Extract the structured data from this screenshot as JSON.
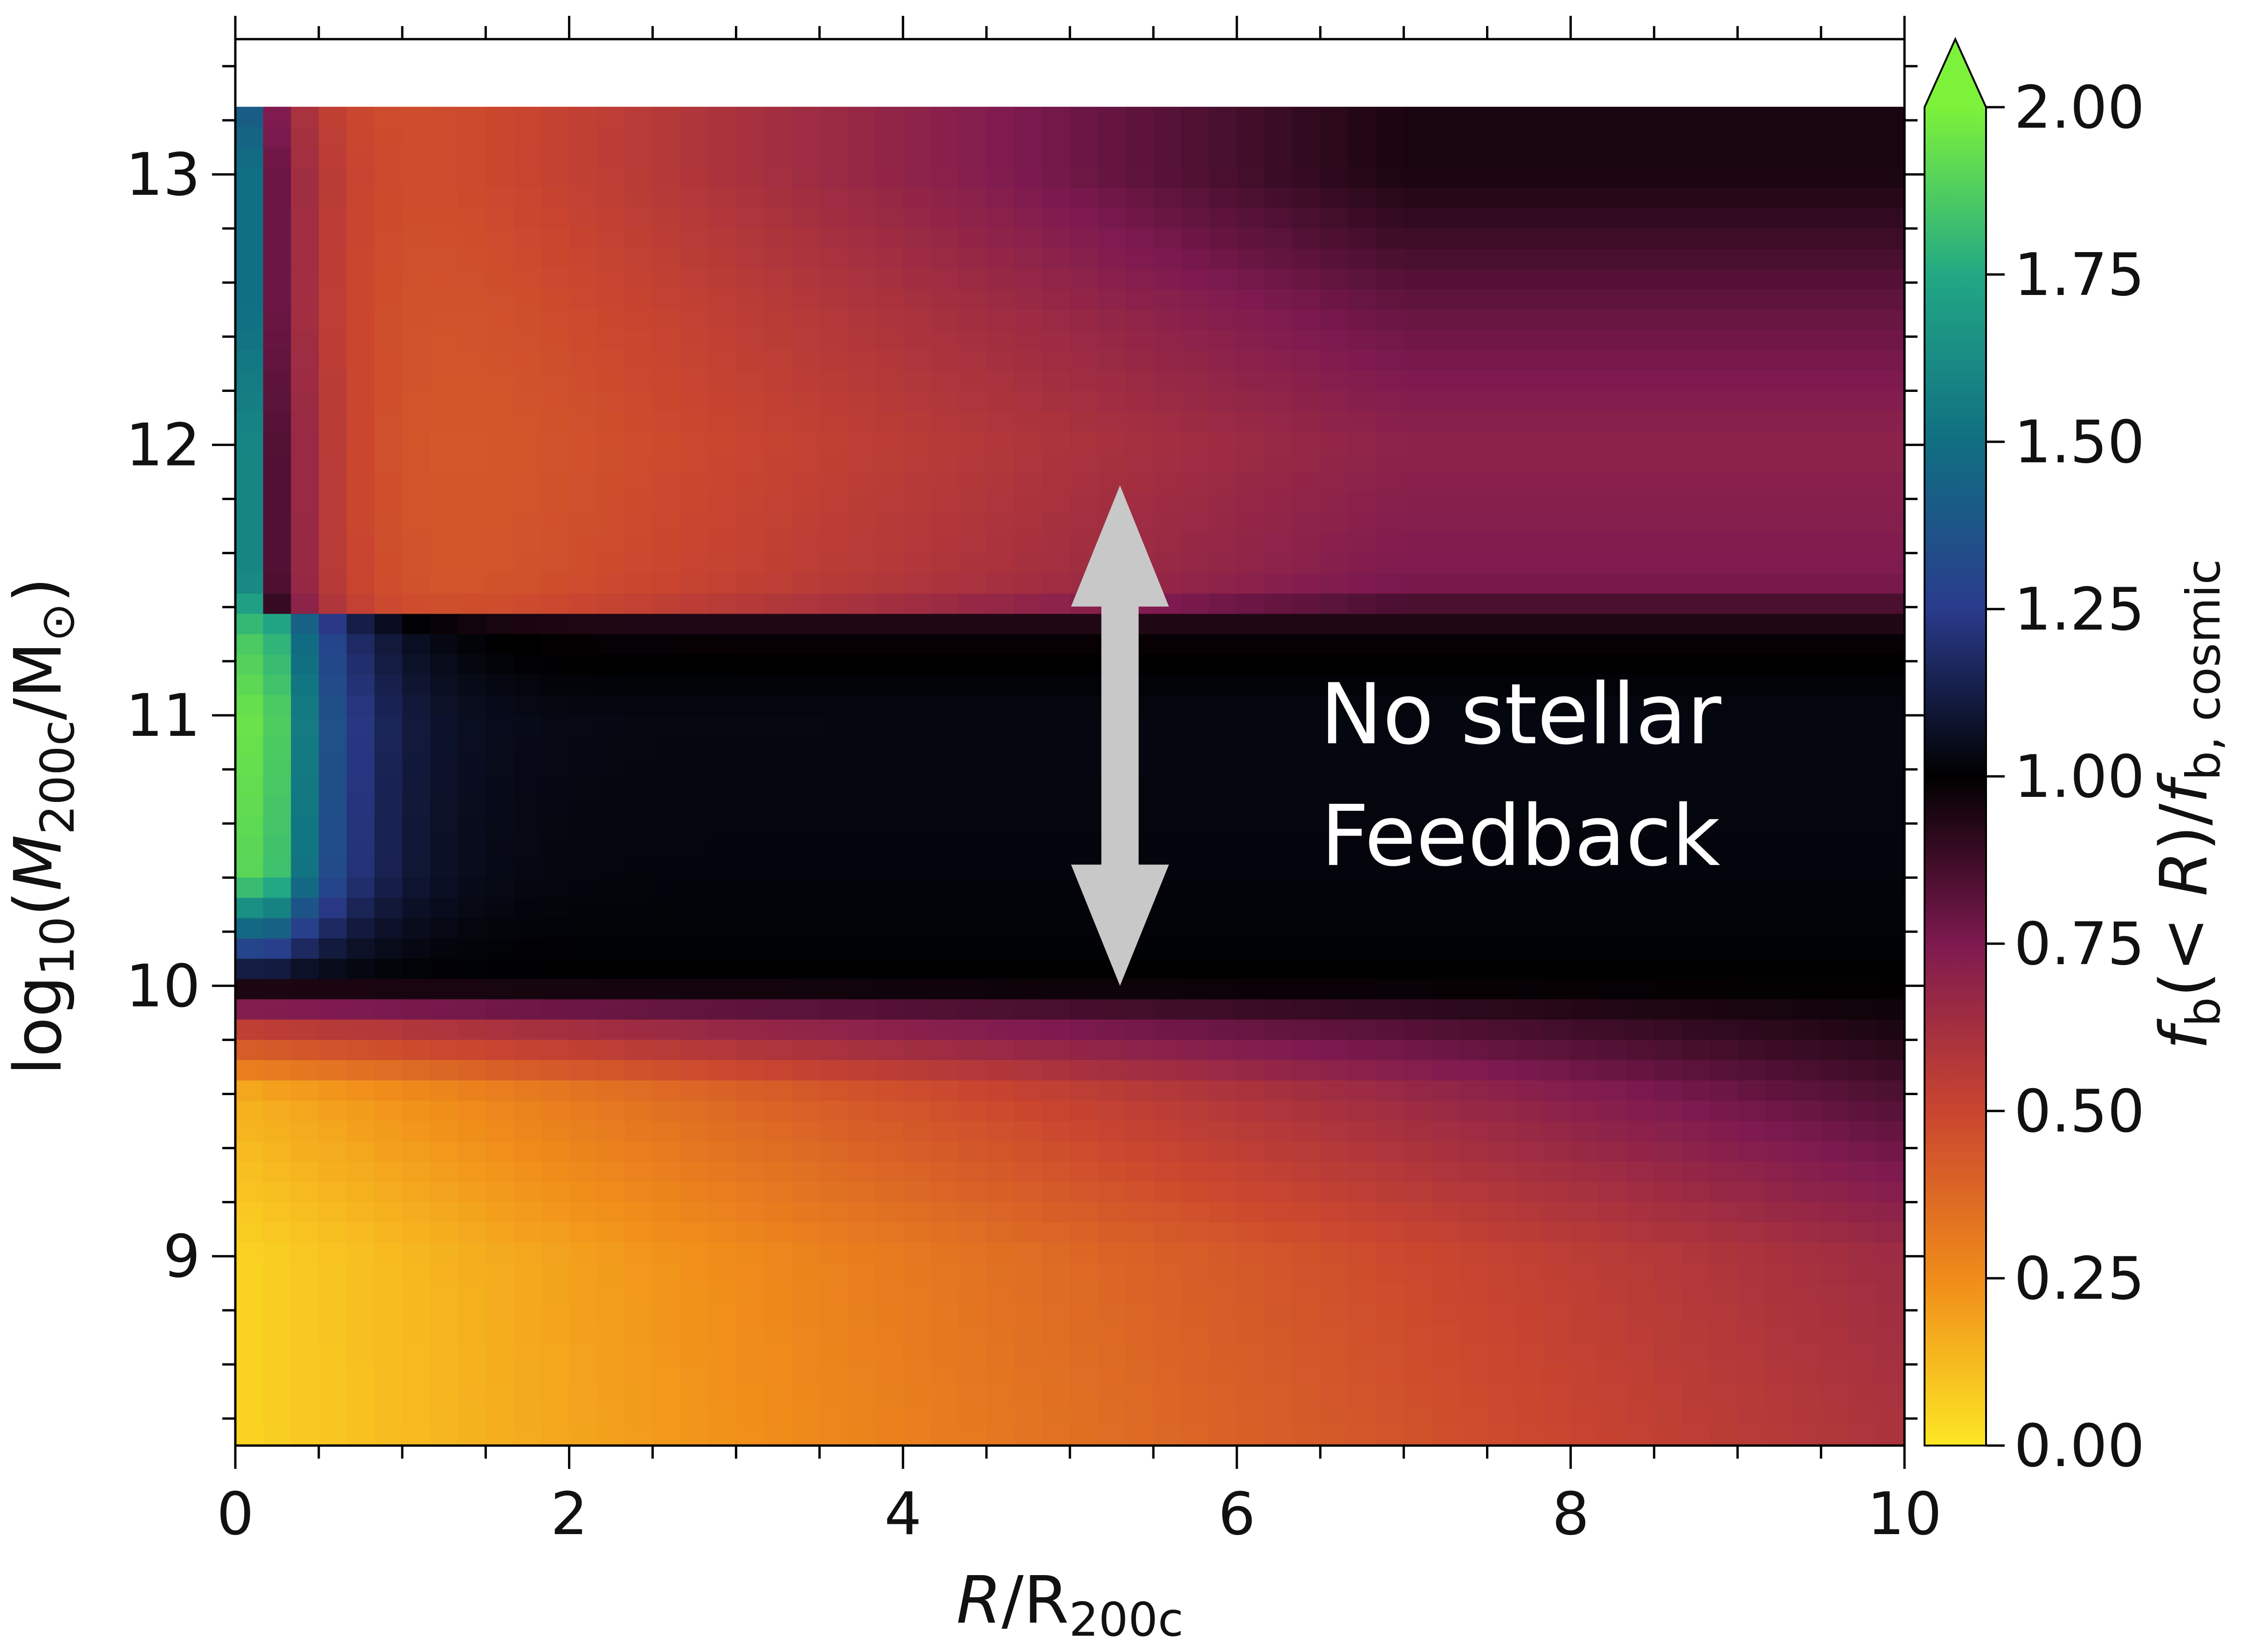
{
  "chart_data": {
    "type": "heatmap",
    "title": "",
    "x_axis": {
      "label_italic": "R",
      "label_rest": "/R",
      "label_sub": "200c",
      "range": [
        0,
        10
      ],
      "major_ticks": [
        0,
        2,
        4,
        6,
        8,
        10
      ],
      "major_tick_labels": [
        "0",
        "2",
        "4",
        "6",
        "8",
        "10"
      ],
      "minor_step": 0.5
    },
    "y_axis": {
      "label_pre": "log",
      "label_pre_sub": "10",
      "label_open": "(",
      "label_italic": "M",
      "label_sub": "200c",
      "label_mid": "/M",
      "label_mid_sub": "⊙",
      "label_close": ")",
      "range": [
        8.3,
        13.5
      ],
      "data_range": [
        8.3,
        13.25
      ],
      "major_ticks": [
        9,
        10,
        11,
        12,
        13
      ],
      "major_tick_labels": [
        "9",
        "10",
        "11",
        "12",
        "13"
      ],
      "minor_step": 0.2
    },
    "colorbar": {
      "range": [
        0.0,
        2.0
      ],
      "extend": "max",
      "ticks": [
        0.0,
        0.25,
        0.5,
        0.75,
        1.0,
        1.25,
        1.5,
        1.75,
        2.0
      ],
      "tick_labels": [
        "0.00",
        "0.25",
        "0.50",
        "0.75",
        "1.00",
        "1.25",
        "1.50",
        "1.75",
        "2.00"
      ],
      "label_f": "f",
      "label_f_sub": "b",
      "label_mid": "(< ",
      "label_R": "R",
      "label_close": ")/",
      "label_f2": "f",
      "label_f2_sub": "b, cosmic",
      "colormap_stops": [
        {
          "v": 0.0,
          "color": "#fde725"
        },
        {
          "v": 0.25,
          "color": "#f08c1a"
        },
        {
          "v": 0.5,
          "color": "#c9452f"
        },
        {
          "v": 0.75,
          "color": "#7e1a50"
        },
        {
          "v": 1.0,
          "color": "#000000"
        },
        {
          "v": 1.25,
          "color": "#2a3b8c"
        },
        {
          "v": 1.5,
          "color": "#106f82"
        },
        {
          "v": 1.75,
          "color": "#22a884"
        },
        {
          "v": 2.0,
          "color": "#7df23a"
        }
      ]
    },
    "annotation": {
      "lines": [
        "No stellar",
        "Feedback"
      ],
      "arrow_x": 5.3,
      "arrow_y_range": [
        10.0,
        11.85
      ],
      "arrow_color": "#c8c8c8"
    },
    "heatmap_model": {
      "mass_bands": [
        {
          "logM": 8.3,
          "center_value": 0.05,
          "outer_value": 0.6
        },
        {
          "logM": 9.0,
          "center_value": 0.05,
          "outer_value": 0.65
        },
        {
          "logM": 9.6,
          "center_value": 0.15,
          "outer_value": 0.85
        },
        {
          "logM": 9.85,
          "center_value": 0.55,
          "outer_value": 0.95
        },
        {
          "logM": 10.0,
          "center_value": 0.98,
          "outer_value": 1.0
        },
        {
          "logM": 10.4,
          "center_value": 1.9,
          "outer_value": 1.02
        },
        {
          "logM": 11.0,
          "center_value": 1.95,
          "outer_value": 1.03
        },
        {
          "logM": 11.3,
          "center_value": 1.85,
          "outer_value": 0.98
        },
        {
          "logM": 11.5,
          "center_value": 1.6,
          "outer_value": 0.75
        },
        {
          "logM": 12.0,
          "center_value": 1.6,
          "outer_value": 0.7
        },
        {
          "logM": 12.5,
          "center_value": 1.5,
          "outer_value": 0.8
        },
        {
          "logM": 13.0,
          "center_value": 1.5,
          "outer_value": 0.95
        },
        {
          "logM": 13.25,
          "center_value": 1.4,
          "outer_value": 0.95
        }
      ]
    }
  }
}
